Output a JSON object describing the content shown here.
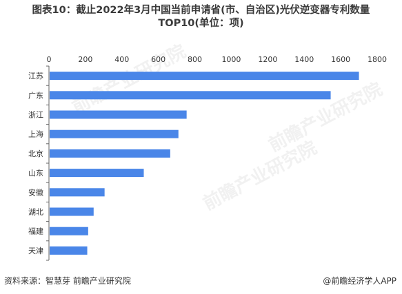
{
  "title_line1": "图表10：截止2022年3月中国当前申请省(市、自治区)光伏逆变器专利数量",
  "title_line2": "TOP10(单位：项)",
  "source": "资料来源：智慧芽 前瞻产业研究院",
  "brand": "@前瞻经济学人APP",
  "watermark": "前瞻产业研究院",
  "colors": {
    "bar": "#4a86e8",
    "axis": "#666666",
    "text": "#333333"
  },
  "chart_data": {
    "type": "bar",
    "orientation": "horizontal",
    "categories": [
      "江苏",
      "广东",
      "浙江",
      "上海",
      "北京",
      "山东",
      "安徽",
      "湖北",
      "福建",
      "天津"
    ],
    "values": [
      1700,
      1545,
      755,
      710,
      665,
      520,
      305,
      245,
      215,
      210
    ],
    "xlim": [
      0,
      1800
    ],
    "xticks": [
      "0",
      "200",
      "400",
      "600",
      "800",
      "1000",
      "1200",
      "1400",
      "1600",
      "1800"
    ],
    "grid": false,
    "x_axis_position": "top"
  }
}
